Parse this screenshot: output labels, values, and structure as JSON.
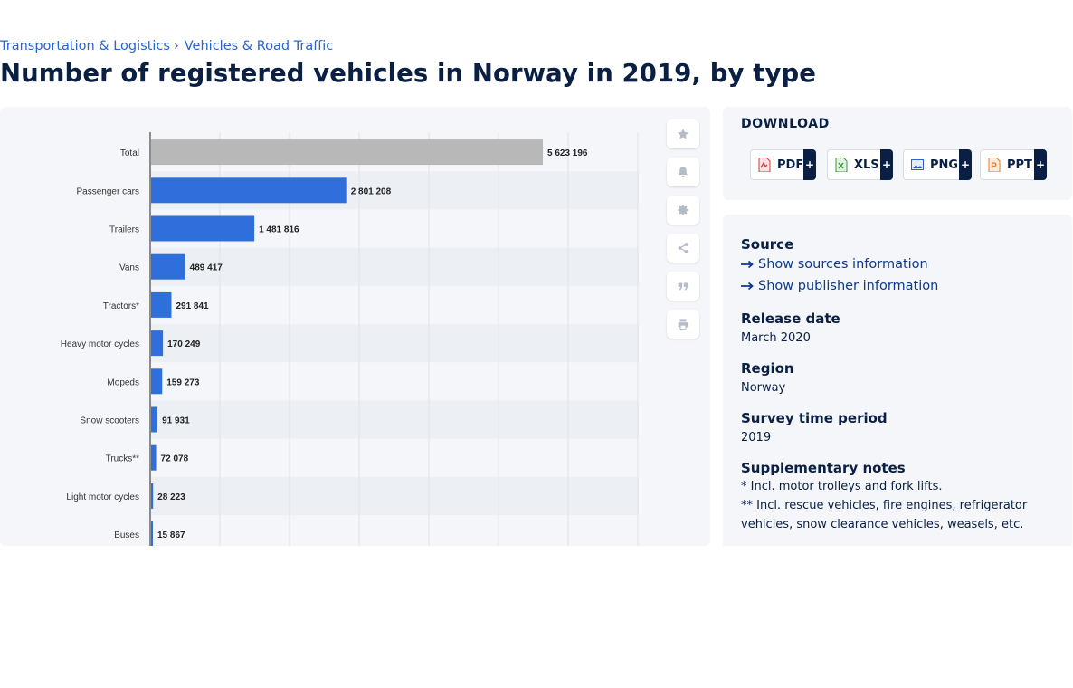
{
  "breadcrumb": {
    "items": [
      "Transportation & Logistics",
      "Vehicles & Road Traffic"
    ],
    "separator": "›"
  },
  "title": "Number of registered vehicles in Norway in 2019, by type",
  "toolbar": [
    "star-icon",
    "bell-icon",
    "gear-icon",
    "share-icon",
    "quote-icon",
    "print-icon"
  ],
  "download": {
    "title": "DOWNLOAD",
    "buttons": [
      {
        "label": "PDF",
        "plus": "+",
        "icon": "pdf-file-icon",
        "color": "#d23a3a"
      },
      {
        "label": "XLS",
        "plus": "+",
        "icon": "xls-file-icon",
        "color": "#3a9a3a"
      },
      {
        "label": "PNG",
        "plus": "+",
        "icon": "png-file-icon",
        "color": "#2a64c8"
      },
      {
        "label": "PPT",
        "plus": "+",
        "icon": "ppt-file-icon",
        "color": "#e07a2a"
      }
    ]
  },
  "info": {
    "source_heading": "Source",
    "source_link_1": "Show sources information",
    "source_link_2": "Show publisher information",
    "release_heading": "Release date",
    "release_value": "March 2020",
    "region_heading": "Region",
    "region_value": "Norway",
    "survey_heading": "Survey time period",
    "survey_value": "2019",
    "notes_heading": "Supplementary notes",
    "note_1": "* Incl. motor trolleys and fork lifts.",
    "note_2": "** Incl. rescue vehicles, fire engines, refrigerator vehicles, snow clearance vehicles, weasels, etc."
  },
  "chart_data": {
    "type": "bar",
    "orientation": "horizontal",
    "categories": [
      "Total",
      "Passenger cars",
      "Trailers",
      "Vans",
      "Tractors*",
      "Heavy motor cycles",
      "Mopeds",
      "Snow scooters",
      "Trucks**",
      "Light motor cycles",
      "Buses"
    ],
    "values": [
      5623196,
      2801208,
      1481816,
      489417,
      291841,
      170249,
      159273,
      91931,
      72078,
      28223,
      15867
    ],
    "value_labels": [
      "5 623 196",
      "2 801 208",
      "1 481 816",
      "489 417",
      "291 841",
      "170 249",
      "159 273",
      "91 931",
      "72 078",
      "28 223",
      "15 867"
    ],
    "xlim": [
      0,
      7000000
    ],
    "grid": true,
    "colors": {
      "highlight": "#b8b8b8",
      "bar": "#2f6fdc",
      "label": "#222222",
      "category": "#333333"
    }
  }
}
